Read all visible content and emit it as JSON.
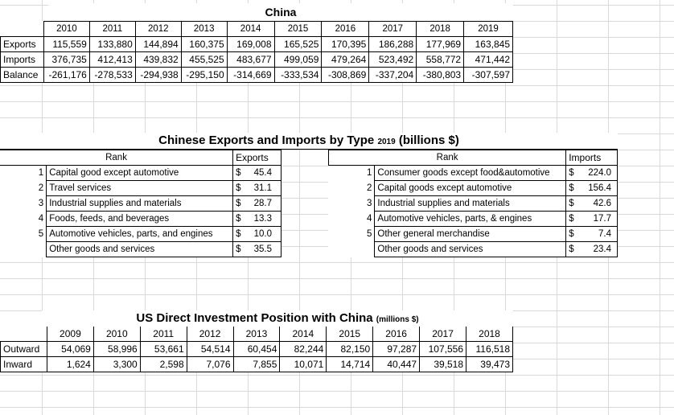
{
  "china_trade": {
    "title": "China",
    "years": [
      "2010",
      "2011",
      "2012",
      "2013",
      "2014",
      "2015",
      "2016",
      "2017",
      "2018",
      "2019"
    ],
    "rows": [
      {
        "label": "Exports",
        "values": [
          "115,559",
          "133,880",
          "144,894",
          "160,375",
          "169,008",
          "165,525",
          "170,395",
          "186,288",
          "177,969",
          "163,845"
        ]
      },
      {
        "label": "Imports",
        "values": [
          "376,735",
          "412,413",
          "439,832",
          "455,525",
          "483,677",
          "499,059",
          "479,264",
          "523,492",
          "558,772",
          "471,442"
        ]
      },
      {
        "label": "Balance",
        "values": [
          "-261,176",
          "-278,533",
          "-294,938",
          "-295,150",
          "-314,669",
          "-333,534",
          "-308,869",
          "-337,204",
          "-380,803",
          "-307,597"
        ]
      }
    ]
  },
  "by_type": {
    "title_main": "Chinese Exports and Imports by Type",
    "title_year": "2019",
    "title_unit": "(billions $)",
    "exports": {
      "rank_header": "Rank",
      "value_header": "Exports",
      "items": [
        {
          "rank": "1",
          "name": "Capital good except automotive",
          "currency": "$",
          "value": "45.4"
        },
        {
          "rank": "2",
          "name": "Travel services",
          "currency": "$",
          "value": "31.1"
        },
        {
          "rank": "3",
          "name": "Industrial supplies and materials",
          "currency": "$",
          "value": "28.7"
        },
        {
          "rank": "4",
          "name": "Foods, feeds, and beverages",
          "currency": "$",
          "value": "13.3"
        },
        {
          "rank": "5",
          "name": "Automotive vehicles, parts, and engines",
          "currency": "$",
          "value": "10.0"
        },
        {
          "rank": "",
          "name": "Other goods and services",
          "currency": "$",
          "value": "35.5"
        }
      ]
    },
    "imports": {
      "rank_header": "Rank",
      "value_header": "Imports",
      "items": [
        {
          "rank": "1",
          "name": "Consumer goods except food&automotive",
          "currency": "$",
          "value": "224.0"
        },
        {
          "rank": "2",
          "name": "Capital goods except automotive",
          "currency": "$",
          "value": "156.4"
        },
        {
          "rank": "3",
          "name": "Industrial supplies and materials",
          "currency": "$",
          "value": "42.6"
        },
        {
          "rank": "4",
          "name": "Automotive vehicles, parts, & engines",
          "currency": "$",
          "value": "17.7"
        },
        {
          "rank": "5",
          "name": "Other general merchandise",
          "currency": "$",
          "value": "7.4"
        },
        {
          "rank": "",
          "name": "Other goods and services",
          "currency": "$",
          "value": "23.4"
        }
      ]
    }
  },
  "us_investment": {
    "title_main": "US Direct Investment Position with China",
    "title_unit": "(millions $)",
    "years": [
      "2009",
      "2010",
      "2011",
      "2012",
      "2013",
      "2014",
      "2015",
      "2016",
      "2017",
      "2018"
    ],
    "rows": [
      {
        "label": "Outward",
        "values": [
          "54,069",
          "58,996",
          "53,661",
          "54,514",
          "60,454",
          "82,244",
          "82,150",
          "97,287",
          "107,556",
          "116,518"
        ]
      },
      {
        "label": "Inward",
        "values": [
          "1,624",
          "3,300",
          "2,598",
          "7,076",
          "7,855",
          "10,071",
          "14,714",
          "40,447",
          "39,518",
          "39,473"
        ]
      }
    ]
  }
}
